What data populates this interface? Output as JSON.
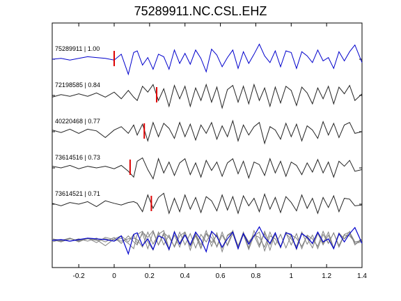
{
  "chart_data": {
    "type": "line",
    "title": "75289911.NC.CSL.EHZ",
    "xlabel": "",
    "ylabel": "",
    "xlim": [
      -0.35,
      1.4
    ],
    "xticks": [
      "-0.2",
      "0",
      "0.2",
      "0.4",
      "0.6",
      "0.8",
      "1",
      "1.2",
      "1.4"
    ],
    "grid": false,
    "colors": {
      "reference": "#0000cc",
      "trace": "#222222",
      "stack": "#808080",
      "pick": "#dd0000",
      "axes": "#000000"
    },
    "series": [
      {
        "name": "75289911 | 1.00",
        "pick": 0.0,
        "x": [
          -0.35,
          -0.3,
          -0.25,
          -0.2,
          -0.15,
          -0.1,
          -0.05,
          0.0,
          0.04,
          0.08,
          0.11,
          0.13,
          0.16,
          0.19,
          0.22,
          0.25,
          0.28,
          0.31,
          0.34,
          0.37,
          0.4,
          0.43,
          0.46,
          0.49,
          0.52,
          0.55,
          0.58,
          0.61,
          0.64,
          0.67,
          0.7,
          0.73,
          0.76,
          0.79,
          0.82,
          0.85,
          0.88,
          0.91,
          0.94,
          0.97,
          1.0,
          1.03,
          1.06,
          1.09,
          1.12,
          1.15,
          1.18,
          1.21,
          1.24,
          1.27,
          1.3,
          1.33,
          1.36,
          1.4
        ],
        "y": [
          0.0,
          0.05,
          -0.05,
          0.05,
          0.15,
          0.1,
          0.05,
          -0.05,
          0.3,
          -0.9,
          0.4,
          0.5,
          -0.35,
          0.1,
          -0.6,
          0.3,
          0.15,
          -0.6,
          0.55,
          -0.25,
          0.35,
          -0.3,
          0.55,
          0.05,
          -0.75,
          0.6,
          0.25,
          -0.45,
          0.1,
          0.55,
          -0.55,
          0.45,
          -0.25,
          0.3,
          0.9,
          0.2,
          -0.2,
          0.5,
          -0.45,
          0.5,
          0.4,
          -0.55,
          0.45,
          0.2,
          -0.2,
          0.55,
          -0.1,
          0.1,
          -0.55,
          0.45,
          -0.1,
          0.45,
          0.85,
          -0.2
        ]
      },
      {
        "name": "72198585 | 0.84",
        "pick": 0.24,
        "x": [
          -0.35,
          -0.3,
          -0.25,
          -0.2,
          -0.15,
          -0.1,
          -0.05,
          0.0,
          0.04,
          0.08,
          0.11,
          0.13,
          0.16,
          0.19,
          0.22,
          0.25,
          0.28,
          0.31,
          0.34,
          0.37,
          0.4,
          0.43,
          0.46,
          0.49,
          0.52,
          0.55,
          0.58,
          0.61,
          0.64,
          0.67,
          0.7,
          0.73,
          0.76,
          0.79,
          0.82,
          0.85,
          0.88,
          0.91,
          0.94,
          0.97,
          1.0,
          1.03,
          1.06,
          1.09,
          1.12,
          1.15,
          1.18,
          1.21,
          1.24,
          1.27,
          1.3,
          1.33,
          1.36,
          1.4
        ],
        "y": [
          -0.1,
          0.05,
          -0.05,
          0.1,
          -0.05,
          0.15,
          -0.1,
          0.2,
          -0.2,
          0.3,
          -0.1,
          -0.3,
          0.55,
          0.2,
          0.65,
          -0.3,
          0.4,
          -0.65,
          0.6,
          -0.2,
          0.55,
          -0.65,
          0.45,
          -0.3,
          0.65,
          -0.4,
          0.5,
          -0.75,
          0.35,
          0.6,
          -0.4,
          0.55,
          -0.5,
          0.65,
          -0.3,
          0.45,
          -0.65,
          0.5,
          -0.45,
          0.55,
          0.3,
          -0.6,
          0.5,
          0.15,
          -0.5,
          0.45,
          -0.2,
          0.55,
          -0.5,
          0.5,
          0.1,
          0.6,
          -0.3,
          0.1
        ]
      },
      {
        "name": "40220468 | 0.77",
        "pick": 0.17,
        "x": [
          -0.35,
          -0.3,
          -0.25,
          -0.2,
          -0.15,
          -0.1,
          -0.05,
          0.0,
          0.04,
          0.08,
          0.11,
          0.13,
          0.16,
          0.19,
          0.22,
          0.25,
          0.28,
          0.31,
          0.34,
          0.37,
          0.4,
          0.43,
          0.46,
          0.49,
          0.52,
          0.55,
          0.58,
          0.61,
          0.64,
          0.67,
          0.7,
          0.73,
          0.76,
          0.79,
          0.82,
          0.85,
          0.88,
          0.91,
          0.94,
          0.97,
          1.0,
          1.03,
          1.06,
          1.09,
          1.12,
          1.15,
          1.18,
          1.21,
          1.24,
          1.27,
          1.3,
          1.33,
          1.36,
          1.4
        ],
        "y": [
          0.1,
          -0.05,
          0.15,
          -0.1,
          0.15,
          0.05,
          -0.35,
          0.1,
          0.3,
          -0.1,
          0.4,
          -0.2,
          0.45,
          -0.55,
          0.55,
          -0.3,
          0.5,
          0.2,
          -0.4,
          0.55,
          -0.3,
          0.45,
          -0.5,
          0.4,
          -0.1,
          0.55,
          -0.45,
          0.35,
          -0.3,
          0.65,
          -0.55,
          0.4,
          -0.2,
          0.3,
          0.55,
          -0.7,
          0.3,
          0.1,
          -0.45,
          0.5,
          -0.3,
          0.45,
          -0.55,
          0.35,
          0.1,
          -0.4,
          0.6,
          -0.2,
          0.5,
          -0.35,
          0.4,
          0.55,
          -0.1,
          0.0
        ]
      },
      {
        "name": "73614516 | 0.73",
        "pick": 0.09,
        "x": [
          -0.35,
          -0.3,
          -0.25,
          -0.2,
          -0.15,
          -0.1,
          -0.05,
          0.0,
          0.04,
          0.08,
          0.11,
          0.13,
          0.16,
          0.19,
          0.22,
          0.25,
          0.28,
          0.31,
          0.34,
          0.37,
          0.4,
          0.43,
          0.46,
          0.49,
          0.52,
          0.55,
          0.58,
          0.61,
          0.64,
          0.67,
          0.7,
          0.73,
          0.76,
          0.79,
          0.82,
          0.85,
          0.88,
          0.91,
          0.94,
          0.97,
          1.0,
          1.03,
          1.06,
          1.09,
          1.12,
          1.15,
          1.18,
          1.21,
          1.24,
          1.27,
          1.3,
          1.33,
          1.36,
          1.4
        ],
        "y": [
          0.1,
          0.0,
          0.15,
          -0.05,
          0.1,
          0.0,
          0.1,
          -0.05,
          0.15,
          -0.2,
          -0.55,
          0.4,
          0.6,
          -0.1,
          -0.65,
          0.55,
          -0.3,
          0.35,
          -0.45,
          0.3,
          0.55,
          -0.4,
          0.3,
          -0.55,
          0.45,
          -0.15,
          0.35,
          -0.5,
          0.3,
          0.55,
          -0.35,
          0.4,
          -0.6,
          0.35,
          0.2,
          -0.45,
          0.55,
          -0.3,
          0.4,
          -0.5,
          0.35,
          0.15,
          -0.4,
          0.3,
          -0.25,
          0.5,
          -0.3,
          0.35,
          -0.55,
          0.4,
          0.1,
          0.45,
          -0.2,
          -0.1
        ]
      },
      {
        "name": "73614521 | 0.71",
        "pick": 0.21,
        "x": [
          -0.35,
          -0.3,
          -0.25,
          -0.2,
          -0.15,
          -0.1,
          -0.05,
          0.0,
          0.04,
          0.08,
          0.11,
          0.13,
          0.16,
          0.19,
          0.22,
          0.25,
          0.28,
          0.31,
          0.34,
          0.37,
          0.4,
          0.43,
          0.46,
          0.49,
          0.52,
          0.55,
          0.58,
          0.61,
          0.64,
          0.67,
          0.7,
          0.73,
          0.76,
          0.79,
          0.82,
          0.85,
          0.88,
          0.91,
          0.94,
          0.97,
          1.0,
          1.03,
          1.06,
          1.09,
          1.12,
          1.15,
          1.18,
          1.21,
          1.24,
          1.27,
          1.3,
          1.33,
          1.36,
          1.4
        ],
        "y": [
          0.05,
          -0.1,
          0.1,
          0.0,
          0.15,
          -0.15,
          0.2,
          0.05,
          -0.05,
          0.1,
          0.15,
          0.05,
          -0.45,
          0.55,
          -0.25,
          0.4,
          0.65,
          -0.55,
          0.35,
          -0.45,
          0.55,
          -0.3,
          0.4,
          -0.5,
          0.45,
          0.2,
          -0.4,
          0.55,
          -0.35,
          0.45,
          -0.55,
          0.5,
          -0.1,
          0.35,
          -0.45,
          0.6,
          -0.3,
          0.4,
          -0.5,
          0.45,
          0.1,
          -0.4,
          0.55,
          -0.25,
          0.35,
          -0.55,
          0.4,
          -0.2,
          0.5,
          -0.45,
          0.35,
          0.3,
          -0.1,
          -0.05
        ]
      }
    ],
    "stack_label": "",
    "stack_note": "overlay of all traces (blue reference over gray traces)"
  }
}
